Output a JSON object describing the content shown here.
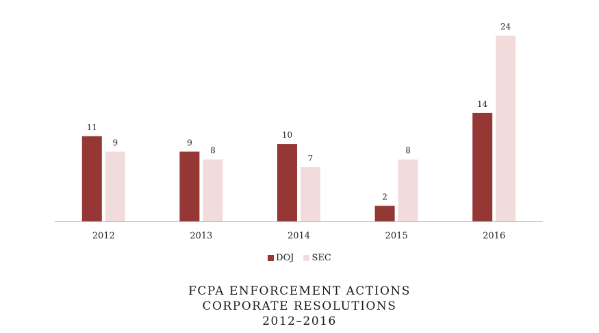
{
  "colors": {
    "doj": "#953735",
    "sec": "#f2dcdb",
    "axis": "#bfbfbf",
    "text": "#222222"
  },
  "legend": {
    "doj_label": "DOJ",
    "sec_label": "SEC"
  },
  "title": {
    "line1": "FCPA ENFORCEMENT ACTIONS",
    "line2": "CORPORATE RESOLUTIONS",
    "line3": "2012–2016"
  },
  "chart_data": {
    "type": "bar",
    "categories": [
      "2012",
      "2013",
      "2014",
      "2015",
      "2016"
    ],
    "series": [
      {
        "name": "DOJ",
        "values": [
          11,
          9,
          10,
          2,
          14
        ]
      },
      {
        "name": "SEC",
        "values": [
          9,
          8,
          7,
          8,
          24
        ]
      }
    ],
    "ylim": [
      0,
      24
    ],
    "grid": false,
    "legend_position": "bottom",
    "data_labels": true
  }
}
